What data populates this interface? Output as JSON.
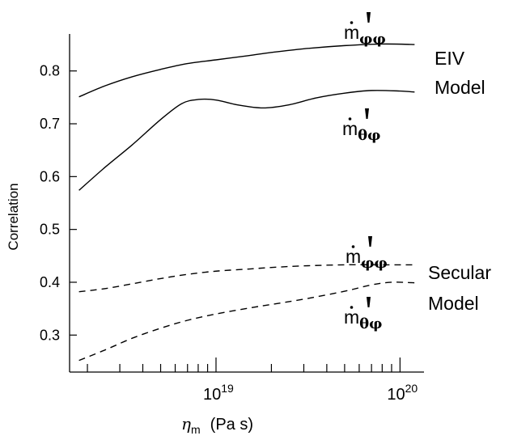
{
  "chart_data": {
    "type": "line",
    "title": "",
    "ylabel": "Correlation",
    "xlabel_symbol": "η",
    "xlabel_subscript": "m",
    "xlabel_unit": "(Pa s)",
    "x_scale": "log",
    "xlim": [
      1.6e+18,
      1.35e+20
    ],
    "ylim": [
      0.23,
      0.87
    ],
    "x_ticks": [
      {
        "value": 1e+19,
        "base": "10",
        "exp": "19"
      },
      {
        "value": 1e+20,
        "base": "10",
        "exp": "20"
      }
    ],
    "y_ticks": [
      {
        "value": 0.3,
        "label": "0.3"
      },
      {
        "value": 0.4,
        "label": "0.4"
      },
      {
        "value": 0.5,
        "label": "0.5"
      },
      {
        "value": 0.6,
        "label": "0.6"
      },
      {
        "value": 0.7,
        "label": "0.7"
      },
      {
        "value": 0.8,
        "label": "0.8"
      }
    ],
    "grid": false,
    "groups": [
      {
        "line1": "EIV",
        "line2": "Model"
      },
      {
        "line1": "Secular",
        "line2": "Model"
      }
    ],
    "series": [
      {
        "style": "solid",
        "label_base": "m",
        "label_sub": "φφ",
        "x": [
          1.8e+18,
          2.5e+18,
          3.5e+18,
          5e+18,
          7e+18,
          1e+19,
          1.5e+19,
          2e+19,
          3e+19,
          5e+19,
          8e+19,
          1.2e+20
        ],
        "values": [
          0.751,
          0.772,
          0.789,
          0.803,
          0.814,
          0.821,
          0.829,
          0.835,
          0.842,
          0.848,
          0.851,
          0.85
        ]
      },
      {
        "style": "solid",
        "label_base": "m",
        "label_sub": "θφ",
        "x": [
          1.8e+18,
          2.5e+18,
          3.5e+18,
          5e+18,
          6.5e+18,
          8e+18,
          1e+19,
          1.3e+19,
          1.8e+19,
          2.5e+19,
          3.5e+19,
          5e+19,
          7e+19,
          1e+20,
          1.2e+20
        ],
        "values": [
          0.574,
          0.618,
          0.66,
          0.708,
          0.738,
          0.746,
          0.745,
          0.736,
          0.73,
          0.736,
          0.749,
          0.758,
          0.763,
          0.762,
          0.76
        ]
      },
      {
        "style": "dashed",
        "label_base": "m",
        "label_sub": "φφ",
        "x": [
          1.8e+18,
          2.5e+18,
          3.5e+18,
          5e+18,
          7e+18,
          1e+19,
          1.5e+19,
          2e+19,
          3e+19,
          5e+19,
          8e+19,
          1.2e+20
        ],
        "values": [
          0.382,
          0.388,
          0.397,
          0.407,
          0.415,
          0.421,
          0.425,
          0.428,
          0.431,
          0.433,
          0.433,
          0.433
        ]
      },
      {
        "style": "dashed",
        "label_base": "m",
        "label_sub": "θφ",
        "x": [
          1.8e+18,
          2.5e+18,
          3.5e+18,
          5e+18,
          7e+18,
          1e+19,
          1.5e+19,
          2e+19,
          3e+19,
          5e+19,
          7e+19,
          9e+19,
          1.2e+20
        ],
        "values": [
          0.252,
          0.272,
          0.294,
          0.313,
          0.328,
          0.34,
          0.351,
          0.358,
          0.368,
          0.383,
          0.395,
          0.4,
          0.399
        ]
      }
    ]
  }
}
